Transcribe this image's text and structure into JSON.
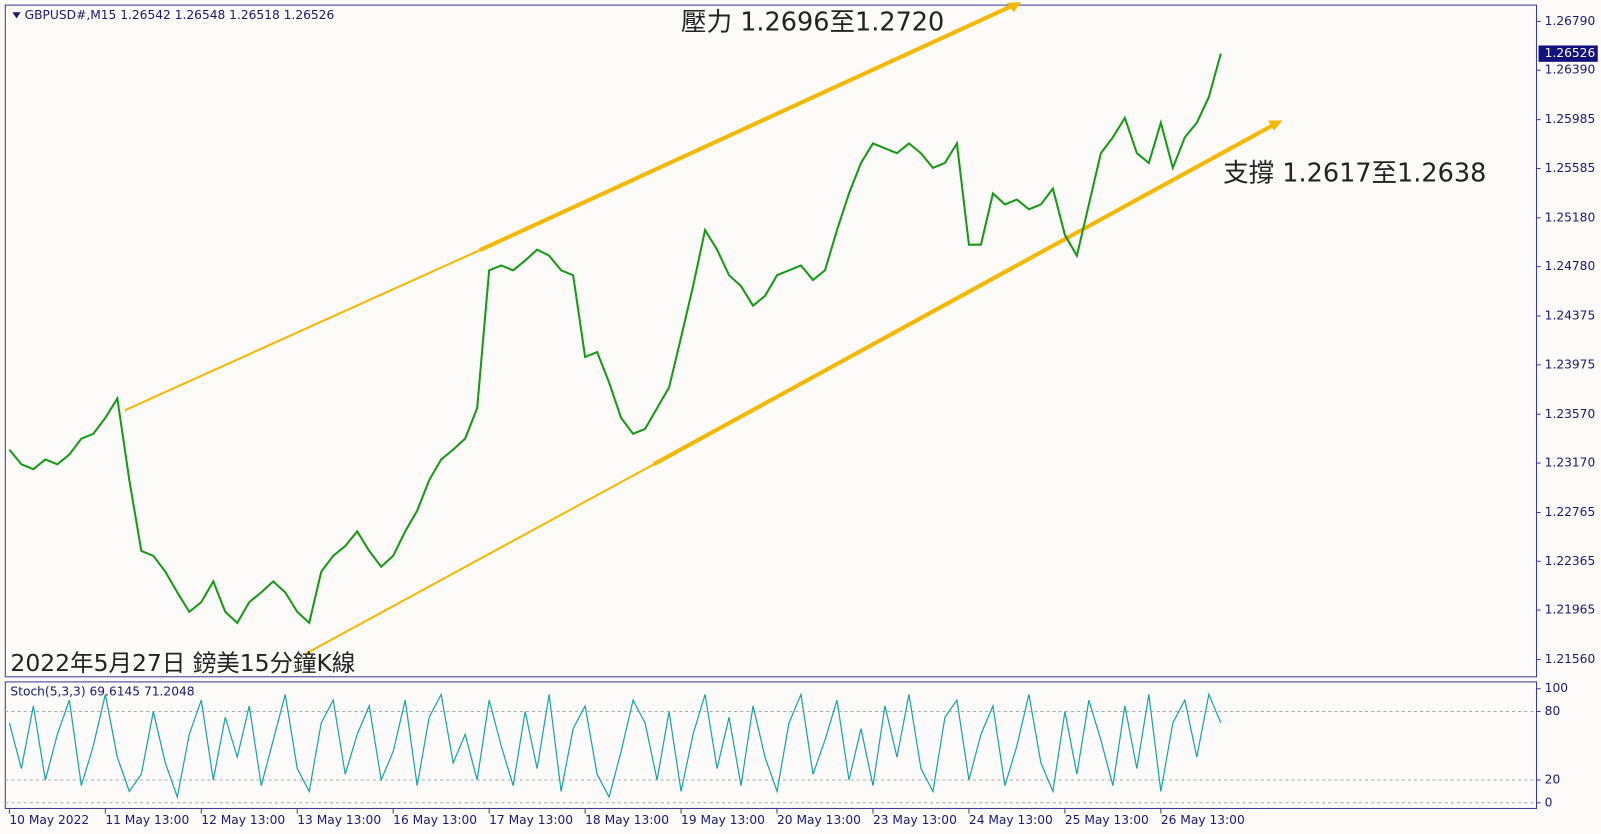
{
  "chart_data": {
    "type": "line",
    "title": "GBPUSD#,M15  1.26542 1.26548 1.26518 1.26526",
    "annotations": [
      "壓力 1.2696至1.2720",
      "支撐 1.2617至1.2638",
      "2022年5月27日 鎊美15分鐘K線"
    ],
    "categories": [
      "10 May 2022",
      null,
      null,
      null,
      null,
      null,
      null,
      null,
      "11 May 13:00",
      null,
      null,
      null,
      null,
      null,
      null,
      null,
      "12 May 13:00",
      null,
      null,
      null,
      null,
      null,
      null,
      null,
      "13 May 13:00",
      null,
      null,
      null,
      null,
      null,
      null,
      null,
      "16 May 13:00",
      null,
      null,
      null,
      null,
      null,
      null,
      null,
      "17 May 13:00",
      null,
      null,
      null,
      null,
      null,
      null,
      null,
      "18 May 13:00",
      null,
      null,
      null,
      null,
      null,
      null,
      null,
      "19 May 13:00",
      null,
      null,
      null,
      null,
      null,
      null,
      null,
      "20 May 13:00",
      null,
      null,
      null,
      null,
      null,
      null,
      null,
      "23 May 13:00",
      null,
      null,
      null,
      null,
      null,
      null,
      null,
      "24 May 13:00",
      null,
      null,
      null,
      null,
      null,
      null,
      null,
      "25 May 13:00",
      null,
      null,
      null,
      null,
      null,
      null,
      null,
      "26 May 13:00",
      null,
      null,
      null,
      null,
      null
    ],
    "series": [
      {
        "name": "GBPUSD#",
        "color": "#169a16",
        "values": [
          1.2328,
          1.2316,
          1.2312,
          1.232,
          1.2316,
          1.2324,
          1.2337,
          1.2341,
          1.2354,
          1.237,
          1.2303,
          1.2245,
          1.2241,
          1.2228,
          1.2211,
          1.2195,
          1.2203,
          1.222,
          1.2195,
          1.2186,
          1.2203,
          1.2211,
          1.222,
          1.2211,
          1.2195,
          1.2186,
          1.2228,
          1.2241,
          1.2249,
          1.2261,
          1.2245,
          1.2232,
          1.2241,
          1.2261,
          1.2278,
          1.2303,
          1.232,
          1.2328,
          1.2337,
          1.2362,
          1.2475,
          1.2479,
          1.2475,
          1.2483,
          1.2492,
          1.2487,
          1.2475,
          1.2471,
          1.2404,
          1.2408,
          1.2383,
          1.2354,
          1.2341,
          1.2345,
          1.2362,
          1.2379,
          1.242,
          1.2462,
          1.2508,
          1.2492,
          1.2471,
          1.2462,
          1.2446,
          1.2454,
          1.2471,
          1.2475,
          1.2479,
          1.2467,
          1.2475,
          1.2508,
          1.2538,
          1.2563,
          1.2579,
          1.2575,
          1.2571,
          1.2579,
          1.2571,
          1.2559,
          1.2563,
          1.2579,
          1.2496,
          1.2496,
          1.2538,
          1.2529,
          1.2533,
          1.2525,
          1.2529,
          1.2542,
          1.2504,
          1.2487,
          1.2529,
          1.2571,
          1.2584,
          1.26,
          1.2571,
          1.2563,
          1.2596,
          1.2559,
          1.2584,
          1.2596,
          1.2617,
          1.26526
        ]
      }
    ],
    "ylim": [
      1.21418,
      1.26924
    ],
    "yticks": [
      {
        "value": 1.2679,
        "label": "1.26790"
      },
      {
        "value": 1.2639,
        "label": "1.26390"
      },
      {
        "value": 1.25985,
        "label": "1.25985"
      },
      {
        "value": 1.25585,
        "label": "1.25585"
      },
      {
        "value": 1.2518,
        "label": "1.25180"
      },
      {
        "value": 1.2478,
        "label": "1.24780"
      },
      {
        "value": 1.24375,
        "label": "1.24375"
      },
      {
        "value": 1.23975,
        "label": "1.23975"
      },
      {
        "value": 1.2357,
        "label": "1.23570"
      },
      {
        "value": 1.2317,
        "label": "1.23170"
      },
      {
        "value": 1.22765,
        "label": "1.22765"
      },
      {
        "value": 1.22365,
        "label": "1.22365"
      },
      {
        "value": 1.21965,
        "label": "1.21965"
      },
      {
        "value": 1.2156,
        "label": "1.21560"
      }
    ],
    "last_price": 1.26526,
    "stoch": {
      "label": "Stoch(5,3,3) 69.6145 71.2048",
      "color": "#1aa3a3",
      "ylim": [
        -5,
        106
      ],
      "yticks": [
        0,
        20,
        80,
        100
      ],
      "values": [
        70,
        30,
        85,
        20,
        60,
        90,
        15,
        50,
        95,
        40,
        10,
        25,
        80,
        35,
        5,
        60,
        90,
        20,
        75,
        40,
        85,
        15,
        55,
        95,
        30,
        10,
        70,
        90,
        25,
        60,
        85,
        20,
        45,
        90,
        15,
        75,
        95,
        35,
        60,
        20,
        90,
        50,
        15,
        80,
        30,
        95,
        10,
        65,
        85,
        25,
        5,
        45,
        90,
        70,
        20,
        80,
        10,
        60,
        95,
        30,
        75,
        15,
        85,
        40,
        10,
        70,
        95,
        25,
        55,
        90,
        20,
        65,
        15,
        85,
        40,
        95,
        30,
        10,
        75,
        90,
        20,
        60,
        85,
        15,
        50,
        95,
        35,
        10,
        80,
        25,
        90,
        55,
        15,
        85,
        30,
        95,
        10,
        70,
        90,
        40,
        95,
        70
      ]
    }
  }
}
